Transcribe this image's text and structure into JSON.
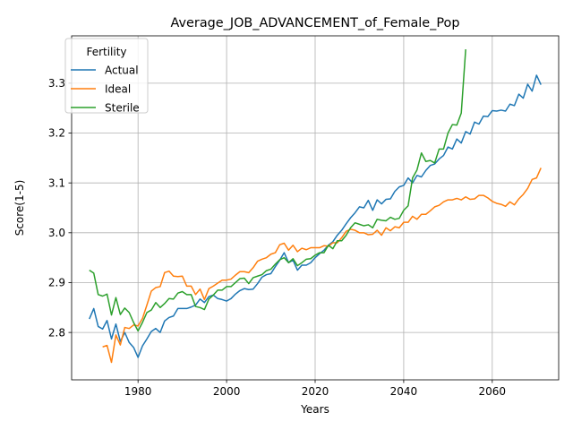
{
  "chart_data": {
    "type": "line",
    "title": "Average_JOB_ADVANCEMENT_of_Female_Pop",
    "xlabel": "Years",
    "ylabel": "Score(1-5)",
    "xlim": [
      1965,
      2075
    ],
    "ylim": [
      2.705,
      3.395
    ],
    "xticks": [
      1980,
      2000,
      2020,
      2040,
      2060
    ],
    "yticks": [
      2.8,
      2.9,
      3.0,
      3.1,
      3.2,
      3.3
    ],
    "grid": true,
    "legend": {
      "title": "Fertility",
      "placement": "top-left"
    },
    "series": [
      {
        "name": "Actual",
        "color": "#1f77b4",
        "points": [
          [
            1969,
            2.827
          ],
          [
            1970,
            2.848
          ],
          [
            1971,
            2.812
          ],
          [
            1972,
            2.807
          ],
          [
            1973,
            2.824
          ],
          [
            1974,
            2.787
          ],
          [
            1975,
            2.817
          ],
          [
            1976,
            2.782
          ],
          [
            1977,
            2.8
          ],
          [
            1978,
            2.78
          ],
          [
            1979,
            2.77
          ],
          [
            1980,
            2.75
          ],
          [
            1981,
            2.773
          ],
          [
            1982,
            2.787
          ],
          [
            1983,
            2.802
          ],
          [
            1984,
            2.808
          ],
          [
            1985,
            2.8
          ],
          [
            1986,
            2.823
          ],
          [
            1987,
            2.83
          ],
          [
            1988,
            2.833
          ],
          [
            1989,
            2.848
          ],
          [
            1990,
            2.848
          ],
          [
            1991,
            2.848
          ],
          [
            1992,
            2.851
          ],
          [
            1993,
            2.855
          ],
          [
            1994,
            2.867
          ],
          [
            1995,
            2.86
          ],
          [
            1996,
            2.872
          ],
          [
            1997,
            2.875
          ],
          [
            1998,
            2.868
          ],
          [
            1999,
            2.866
          ],
          [
            2000,
            2.863
          ],
          [
            2001,
            2.868
          ],
          [
            2002,
            2.877
          ],
          [
            2003,
            2.884
          ],
          [
            2004,
            2.888
          ],
          [
            2005,
            2.886
          ],
          [
            2006,
            2.887
          ],
          [
            2007,
            2.898
          ],
          [
            2008,
            2.911
          ],
          [
            2009,
            2.916
          ],
          [
            2010,
            2.918
          ],
          [
            2011,
            2.932
          ],
          [
            2012,
            2.945
          ],
          [
            2013,
            2.96
          ],
          [
            2014,
            2.94
          ],
          [
            2015,
            2.945
          ],
          [
            2016,
            2.925
          ],
          [
            2017,
            2.935
          ],
          [
            2018,
            2.935
          ],
          [
            2019,
            2.94
          ],
          [
            2020,
            2.95
          ],
          [
            2021,
            2.958
          ],
          [
            2022,
            2.965
          ],
          [
            2023,
            2.975
          ],
          [
            2024,
            2.982
          ],
          [
            2025,
            2.995
          ],
          [
            2026,
            3.005
          ],
          [
            2027,
            3.018
          ],
          [
            2028,
            3.03
          ],
          [
            2029,
            3.04
          ],
          [
            2030,
            3.052
          ],
          [
            2031,
            3.05
          ],
          [
            2032,
            3.065
          ],
          [
            2033,
            3.045
          ],
          [
            2034,
            3.066
          ],
          [
            2035,
            3.058
          ],
          [
            2036,
            3.067
          ],
          [
            2037,
            3.068
          ],
          [
            2038,
            3.083
          ],
          [
            2039,
            3.092
          ],
          [
            2040,
            3.095
          ],
          [
            2041,
            3.11
          ],
          [
            2042,
            3.1
          ],
          [
            2043,
            3.115
          ],
          [
            2044,
            3.112
          ],
          [
            2045,
            3.125
          ],
          [
            2046,
            3.135
          ],
          [
            2047,
            3.138
          ],
          [
            2048,
            3.148
          ],
          [
            2049,
            3.155
          ],
          [
            2050,
            3.172
          ],
          [
            2051,
            3.168
          ],
          [
            2052,
            3.188
          ],
          [
            2053,
            3.18
          ],
          [
            2054,
            3.203
          ],
          [
            2055,
            3.198
          ],
          [
            2056,
            3.222
          ],
          [
            2057,
            3.218
          ],
          [
            2058,
            3.234
          ],
          [
            2059,
            3.233
          ],
          [
            2060,
            3.245
          ],
          [
            2061,
            3.244
          ],
          [
            2062,
            3.246
          ],
          [
            2063,
            3.244
          ],
          [
            2064,
            3.258
          ],
          [
            2065,
            3.255
          ],
          [
            2066,
            3.278
          ],
          [
            2067,
            3.27
          ],
          [
            2068,
            3.298
          ],
          [
            2069,
            3.284
          ],
          [
            2070,
            3.316
          ],
          [
            2071,
            3.297
          ]
        ]
      },
      {
        "name": "Ideal",
        "color": "#ff7f0e",
        "points": [
          [
            1972,
            2.771
          ],
          [
            1973,
            2.774
          ],
          [
            1974,
            2.74
          ],
          [
            1975,
            2.795
          ],
          [
            1976,
            2.775
          ],
          [
            1977,
            2.81
          ],
          [
            1978,
            2.808
          ],
          [
            1979,
            2.815
          ],
          [
            1980,
            2.813
          ],
          [
            1981,
            2.828
          ],
          [
            1982,
            2.855
          ],
          [
            1983,
            2.883
          ],
          [
            1984,
            2.89
          ],
          [
            1985,
            2.892
          ],
          [
            1986,
            2.92
          ],
          [
            1987,
            2.923
          ],
          [
            1988,
            2.913
          ],
          [
            1989,
            2.912
          ],
          [
            1990,
            2.913
          ],
          [
            1991,
            2.893
          ],
          [
            1992,
            2.893
          ],
          [
            1993,
            2.876
          ],
          [
            1994,
            2.887
          ],
          [
            1995,
            2.866
          ],
          [
            1996,
            2.888
          ],
          [
            1997,
            2.893
          ],
          [
            1998,
            2.899
          ],
          [
            1999,
            2.905
          ],
          [
            2000,
            2.905
          ],
          [
            2001,
            2.907
          ],
          [
            2002,
            2.915
          ],
          [
            2003,
            2.922
          ],
          [
            2004,
            2.922
          ],
          [
            2005,
            2.92
          ],
          [
            2006,
            2.93
          ],
          [
            2007,
            2.943
          ],
          [
            2008,
            2.947
          ],
          [
            2009,
            2.95
          ],
          [
            2010,
            2.957
          ],
          [
            2011,
            2.96
          ],
          [
            2012,
            2.976
          ],
          [
            2013,
            2.979
          ],
          [
            2014,
            2.965
          ],
          [
            2015,
            2.975
          ],
          [
            2016,
            2.962
          ],
          [
            2017,
            2.969
          ],
          [
            2018,
            2.966
          ],
          [
            2019,
            2.97
          ],
          [
            2020,
            2.97
          ],
          [
            2021,
            2.97
          ],
          [
            2022,
            2.974
          ],
          [
            2023,
            2.973
          ],
          [
            2024,
            2.98
          ],
          [
            2025,
            2.98
          ],
          [
            2026,
            2.99
          ],
          [
            2027,
            3.003
          ],
          [
            2028,
            3.007
          ],
          [
            2029,
            3.005
          ],
          [
            2030,
            3.0
          ],
          [
            2031,
            3.0
          ],
          [
            2032,
            2.996
          ],
          [
            2033,
            2.997
          ],
          [
            2034,
            3.005
          ],
          [
            2035,
            2.995
          ],
          [
            2036,
            3.01
          ],
          [
            2037,
            3.004
          ],
          [
            2038,
            3.012
          ],
          [
            2039,
            3.01
          ],
          [
            2040,
            3.021
          ],
          [
            2041,
            3.021
          ],
          [
            2042,
            3.033
          ],
          [
            2043,
            3.027
          ],
          [
            2044,
            3.037
          ],
          [
            2045,
            3.037
          ],
          [
            2046,
            3.044
          ],
          [
            2047,
            3.052
          ],
          [
            2048,
            3.055
          ],
          [
            2049,
            3.062
          ],
          [
            2050,
            3.066
          ],
          [
            2051,
            3.066
          ],
          [
            2052,
            3.069
          ],
          [
            2053,
            3.066
          ],
          [
            2054,
            3.072
          ],
          [
            2055,
            3.067
          ],
          [
            2056,
            3.068
          ],
          [
            2057,
            3.075
          ],
          [
            2058,
            3.075
          ],
          [
            2059,
            3.07
          ],
          [
            2060,
            3.063
          ],
          [
            2061,
            3.059
          ],
          [
            2062,
            3.057
          ],
          [
            2063,
            3.053
          ],
          [
            2064,
            3.062
          ],
          [
            2065,
            3.056
          ],
          [
            2066,
            3.068
          ],
          [
            2067,
            3.077
          ],
          [
            2068,
            3.089
          ],
          [
            2069,
            3.107
          ],
          [
            2070,
            3.11
          ],
          [
            2071,
            3.13
          ]
        ]
      },
      {
        "name": "Sterile",
        "color": "#2ca02c",
        "points": [
          [
            1969,
            2.925
          ],
          [
            1970,
            2.919
          ],
          [
            1971,
            2.876
          ],
          [
            1972,
            2.873
          ],
          [
            1973,
            2.877
          ],
          [
            1974,
            2.835
          ],
          [
            1975,
            2.87
          ],
          [
            1976,
            2.836
          ],
          [
            1977,
            2.849
          ],
          [
            1978,
            2.84
          ],
          [
            1979,
            2.82
          ],
          [
            1980,
            2.803
          ],
          [
            1981,
            2.82
          ],
          [
            1982,
            2.84
          ],
          [
            1983,
            2.845
          ],
          [
            1984,
            2.86
          ],
          [
            1985,
            2.85
          ],
          [
            1986,
            2.858
          ],
          [
            1987,
            2.868
          ],
          [
            1988,
            2.867
          ],
          [
            1989,
            2.879
          ],
          [
            1990,
            2.882
          ],
          [
            1991,
            2.876
          ],
          [
            1992,
            2.876
          ],
          [
            1993,
            2.852
          ],
          [
            1994,
            2.85
          ],
          [
            1995,
            2.846
          ],
          [
            1996,
            2.867
          ],
          [
            1997,
            2.875
          ],
          [
            1998,
            2.885
          ],
          [
            1999,
            2.885
          ],
          [
            2000,
            2.892
          ],
          [
            2001,
            2.892
          ],
          [
            2002,
            2.9
          ],
          [
            2003,
            2.908
          ],
          [
            2004,
            2.909
          ],
          [
            2005,
            2.898
          ],
          [
            2006,
            2.91
          ],
          [
            2007,
            2.913
          ],
          [
            2008,
            2.916
          ],
          [
            2009,
            2.924
          ],
          [
            2010,
            2.927
          ],
          [
            2011,
            2.937
          ],
          [
            2012,
            2.946
          ],
          [
            2013,
            2.95
          ],
          [
            2014,
            2.94
          ],
          [
            2015,
            2.948
          ],
          [
            2016,
            2.934
          ],
          [
            2017,
            2.94
          ],
          [
            2018,
            2.947
          ],
          [
            2019,
            2.948
          ],
          [
            2020,
            2.955
          ],
          [
            2021,
            2.96
          ],
          [
            2022,
            2.96
          ],
          [
            2023,
            2.975
          ],
          [
            2024,
            2.968
          ],
          [
            2025,
            2.984
          ],
          [
            2026,
            2.984
          ],
          [
            2027,
            2.995
          ],
          [
            2028,
            3.01
          ],
          [
            2029,
            3.02
          ],
          [
            2030,
            3.017
          ],
          [
            2031,
            3.014
          ],
          [
            2032,
            3.016
          ],
          [
            2033,
            3.01
          ],
          [
            2034,
            3.027
          ],
          [
            2035,
            3.025
          ],
          [
            2036,
            3.024
          ],
          [
            2037,
            3.031
          ],
          [
            2038,
            3.027
          ],
          [
            2039,
            3.029
          ],
          [
            2040,
            3.045
          ],
          [
            2041,
            3.054
          ],
          [
            2042,
            3.11
          ],
          [
            2043,
            3.126
          ],
          [
            2044,
            3.16
          ],
          [
            2045,
            3.143
          ],
          [
            2046,
            3.145
          ],
          [
            2047,
            3.14
          ],
          [
            2048,
            3.168
          ],
          [
            2049,
            3.168
          ],
          [
            2050,
            3.2
          ],
          [
            2051,
            3.217
          ],
          [
            2052,
            3.216
          ],
          [
            2053,
            3.24
          ],
          [
            2054,
            3.368
          ]
        ]
      }
    ]
  }
}
